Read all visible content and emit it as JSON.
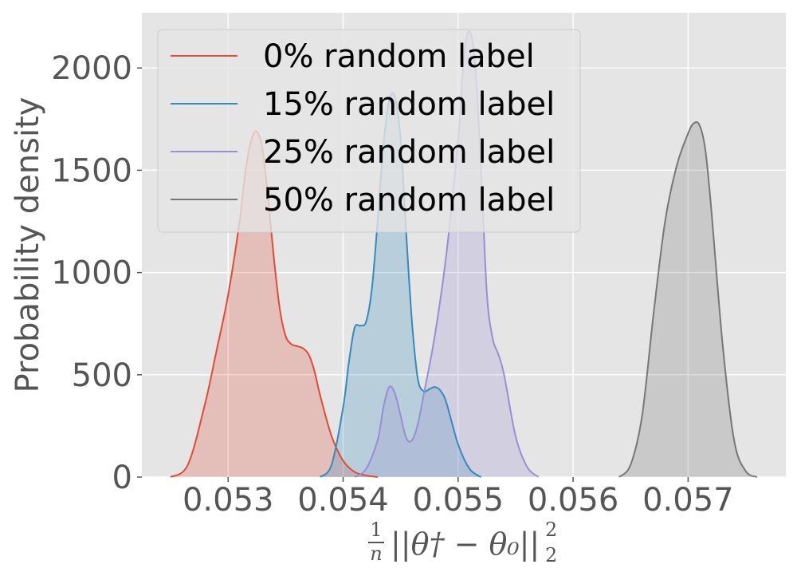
{
  "chart_data": {
    "type": "area",
    "title": "",
    "ylabel": "Probability density",
    "xlabel_parts": {
      "frac_num": "1",
      "frac_den": "n",
      "body": "||θ† − θ₀||",
      "sup": "2",
      "sub": "2"
    },
    "xlim": [
      0.05225,
      0.05785
    ],
    "ylim": [
      0,
      2270
    ],
    "xticks": [
      {
        "value": 0.053,
        "label": "0.053"
      },
      {
        "value": 0.054,
        "label": "0.054"
      },
      {
        "value": 0.055,
        "label": "0.055"
      },
      {
        "value": 0.056,
        "label": "0.056"
      },
      {
        "value": 0.057,
        "label": "0.057"
      }
    ],
    "yticks": [
      {
        "value": 0,
        "label": "0"
      },
      {
        "value": 500,
        "label": "500"
      },
      {
        "value": 1000,
        "label": "1000"
      },
      {
        "value": 1500,
        "label": "1500"
      },
      {
        "value": 2000,
        "label": "2000"
      }
    ],
    "grid": true,
    "legend_position": "top-left",
    "series": [
      {
        "name": "0% random label",
        "color": "#e24a33",
        "x": [
          0.0525,
          0.05265,
          0.0528,
          0.0529,
          0.053,
          0.0531,
          0.05315,
          0.0532,
          0.05325,
          0.0533,
          0.05335,
          0.0534,
          0.05345,
          0.0535,
          0.05355,
          0.0536,
          0.05365,
          0.0537,
          0.05375,
          0.0538,
          0.0539,
          0.054,
          0.0541,
          0.0542,
          0.0543
        ],
        "y": [
          0,
          60,
          360,
          620,
          890,
          1250,
          1490,
          1645,
          1690,
          1600,
          1350,
          1060,
          820,
          690,
          650,
          640,
          630,
          600,
          520,
          400,
          200,
          80,
          25,
          8,
          0
        ]
      },
      {
        "name": "15% random label",
        "color": "#348abd",
        "x": [
          0.0538,
          0.0539,
          0.054,
          0.05405,
          0.0541,
          0.05415,
          0.0542,
          0.05425,
          0.0543,
          0.05435,
          0.0544,
          0.05445,
          0.0545,
          0.05455,
          0.0546,
          0.05465,
          0.0547,
          0.05475,
          0.0548,
          0.05485,
          0.0549,
          0.055,
          0.0551,
          0.0552
        ],
        "y": [
          0,
          60,
          340,
          560,
          730,
          740,
          760,
          920,
          1250,
          1620,
          1840,
          1860,
          1650,
          1180,
          750,
          480,
          420,
          430,
          440,
          420,
          360,
          160,
          40,
          0
        ]
      },
      {
        "name": "25% random label",
        "color": "#988ed5",
        "x": [
          0.0541,
          0.0542,
          0.0543,
          0.05435,
          0.0544,
          0.05445,
          0.0545,
          0.05455,
          0.0546,
          0.05465,
          0.0547,
          0.0548,
          0.0549,
          0.055,
          0.05505,
          0.0551,
          0.05515,
          0.0552,
          0.05525,
          0.0553,
          0.05535,
          0.0554,
          0.0555,
          0.0556,
          0.0557
        ],
        "y": [
          0,
          40,
          180,
          340,
          440,
          410,
          300,
          190,
          180,
          260,
          400,
          700,
          1100,
          1650,
          2050,
          2180,
          2000,
          1500,
          900,
          680,
          600,
          500,
          200,
          50,
          0
        ]
      },
      {
        "name": "50% random label",
        "color": "#777777",
        "x": [
          0.0564,
          0.0565,
          0.0566,
          0.0567,
          0.0568,
          0.0569,
          0.057,
          0.05705,
          0.0571,
          0.05715,
          0.0572,
          0.0573,
          0.0574,
          0.0575,
          0.0576
        ],
        "y": [
          0,
          60,
          300,
          800,
          1250,
          1520,
          1680,
          1730,
          1720,
          1600,
          1320,
          650,
          180,
          30,
          0
        ]
      }
    ]
  }
}
